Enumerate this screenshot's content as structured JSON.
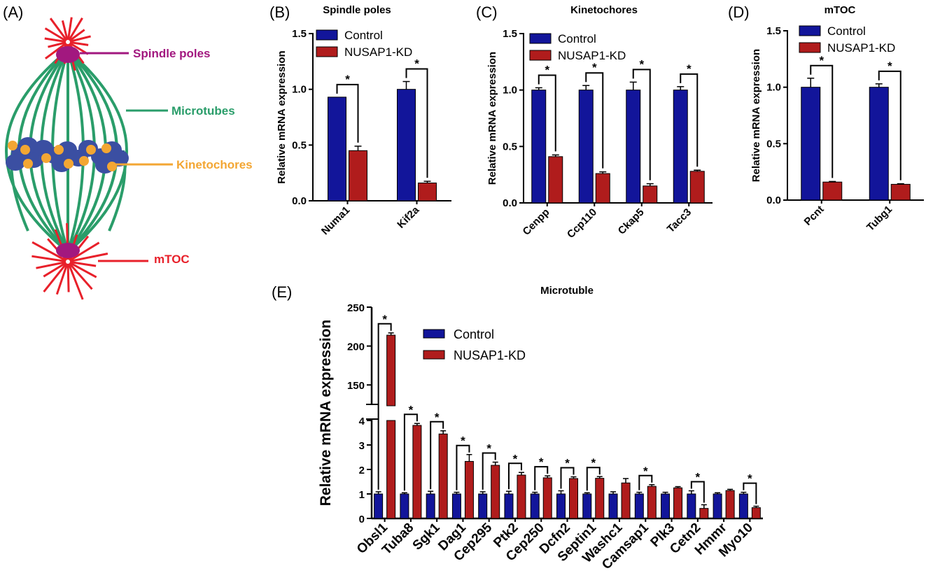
{
  "panel_letters": [
    "(A)",
    "(B)",
    "(C)",
    "(D)",
    "(E)"
  ],
  "diagram": {
    "labels": [
      {
        "key": "spindle_poles",
        "text": "Spindle poles",
        "color": "#a2187f"
      },
      {
        "key": "microtubes",
        "text": "Microtubes",
        "color": "#2a9d6a"
      },
      {
        "key": "kinetochores",
        "text": "Kinetochores",
        "color": "#f3a633"
      },
      {
        "key": "mtoc",
        "text": "mTOC",
        "color": "#e8202a"
      }
    ]
  },
  "colors": {
    "control": "#12159a",
    "kd": "#b01c1c"
  },
  "legend": {
    "control": "Control",
    "kd": "NUSAP1-KD"
  },
  "chart_data": [
    {
      "type": "bar",
      "panel": "B",
      "title": "Spindle poles",
      "ylabel": "Relative mRNA expression",
      "xlabel": "",
      "ylim": [
        0,
        1.5
      ],
      "yticks": [
        "0.0",
        "0.5",
        "1.0",
        "1.5"
      ],
      "categories": [
        "Numa1",
        "Kif2a"
      ],
      "series": [
        {
          "name": "Control",
          "values": [
            0.93,
            1.0
          ],
          "errors": [
            0,
            0.07
          ]
        },
        {
          "name": "NUSAP1-KD",
          "values": [
            0.45,
            0.16
          ],
          "errors": [
            0.04,
            0.015
          ]
        }
      ],
      "significance": [
        "*",
        "*"
      ]
    },
    {
      "type": "bar",
      "panel": "C",
      "title": "Kinetochores",
      "ylabel": "Relative mRNA expression",
      "xlabel": "",
      "ylim": [
        0,
        1.5
      ],
      "yticks": [
        "0.0",
        "0.5",
        "1.0",
        "1.5"
      ],
      "categories": [
        "Cenpp",
        "Ccp110",
        "Ckap5",
        "Tacc3"
      ],
      "series": [
        {
          "name": "Control",
          "values": [
            1.0,
            1.0,
            1.0,
            1.0
          ],
          "errors": [
            0.02,
            0.04,
            0.07,
            0.03
          ]
        },
        {
          "name": "NUSAP1-KD",
          "values": [
            0.41,
            0.26,
            0.15,
            0.28
          ],
          "errors": [
            0.015,
            0.015,
            0.02,
            0.01
          ]
        }
      ],
      "significance": [
        "*",
        "*",
        "*",
        "*"
      ]
    },
    {
      "type": "bar",
      "panel": "D",
      "title": "mTOC",
      "ylabel": "Relative mRNA expression",
      "xlabel": "",
      "ylim": [
        0,
        1.5
      ],
      "yticks": [
        "0.0",
        "0.5",
        "1.0",
        "1.5"
      ],
      "categories": [
        "Pcnt",
        "Tubg1"
      ],
      "series": [
        {
          "name": "Control",
          "values": [
            1.0,
            1.0
          ],
          "errors": [
            0.08,
            0.03
          ]
        },
        {
          "name": "NUSAP1-KD",
          "values": [
            0.16,
            0.14
          ],
          "errors": [
            0.005,
            0.005
          ]
        }
      ],
      "significance": [
        "*",
        "*"
      ]
    },
    {
      "type": "bar",
      "panel": "E",
      "title": "Microtuble",
      "ylabel": "Relative mRNA expression",
      "xlabel": "",
      "ylim": [
        0,
        250
      ],
      "axis_break": [
        4,
        125
      ],
      "yticks": [
        "0",
        "1",
        "2",
        "3",
        "4",
        "150",
        "200",
        "250"
      ],
      "categories": [
        "Obsl1",
        "Tuba8",
        "Sgk1",
        "Dag1",
        "Cep295",
        "Ptk2",
        "Cep250",
        "Dcfn2",
        "Septin1",
        "Washc1",
        "Camsap1",
        "Plk3",
        "Cetn2",
        "Hmmr",
        "Myo10"
      ],
      "series": [
        {
          "name": "Control",
          "values": [
            1.0,
            1.0,
            1.0,
            1.0,
            1.0,
            1.0,
            1.0,
            1.0,
            1.0,
            1.0,
            1.0,
            1.0,
            1.0,
            1.0,
            1.0
          ],
          "errors": [
            0.06,
            0.02,
            0.08,
            0.04,
            0.06,
            0.08,
            0.04,
            0.1,
            0.02,
            0.06,
            0.04,
            0.04,
            0.1,
            0.02,
            0.04
          ]
        },
        {
          "name": "NUSAP1-KD",
          "values": [
            214,
            3.8,
            3.45,
            2.33,
            2.17,
            1.77,
            1.66,
            1.63,
            1.64,
            1.45,
            1.31,
            1.25,
            0.41,
            1.14,
            0.44
          ],
          "errors": [
            2,
            0.05,
            0.1,
            0.25,
            0.1,
            0.08,
            0.05,
            0.04,
            0.04,
            0.15,
            0.04,
            0.02,
            0.12,
            0.02,
            0.03
          ]
        }
      ],
      "significance": [
        "*",
        "*",
        "*",
        "*",
        "*",
        "*",
        "*",
        "*",
        "*",
        "",
        "*",
        "",
        "*",
        "",
        "*"
      ]
    }
  ]
}
